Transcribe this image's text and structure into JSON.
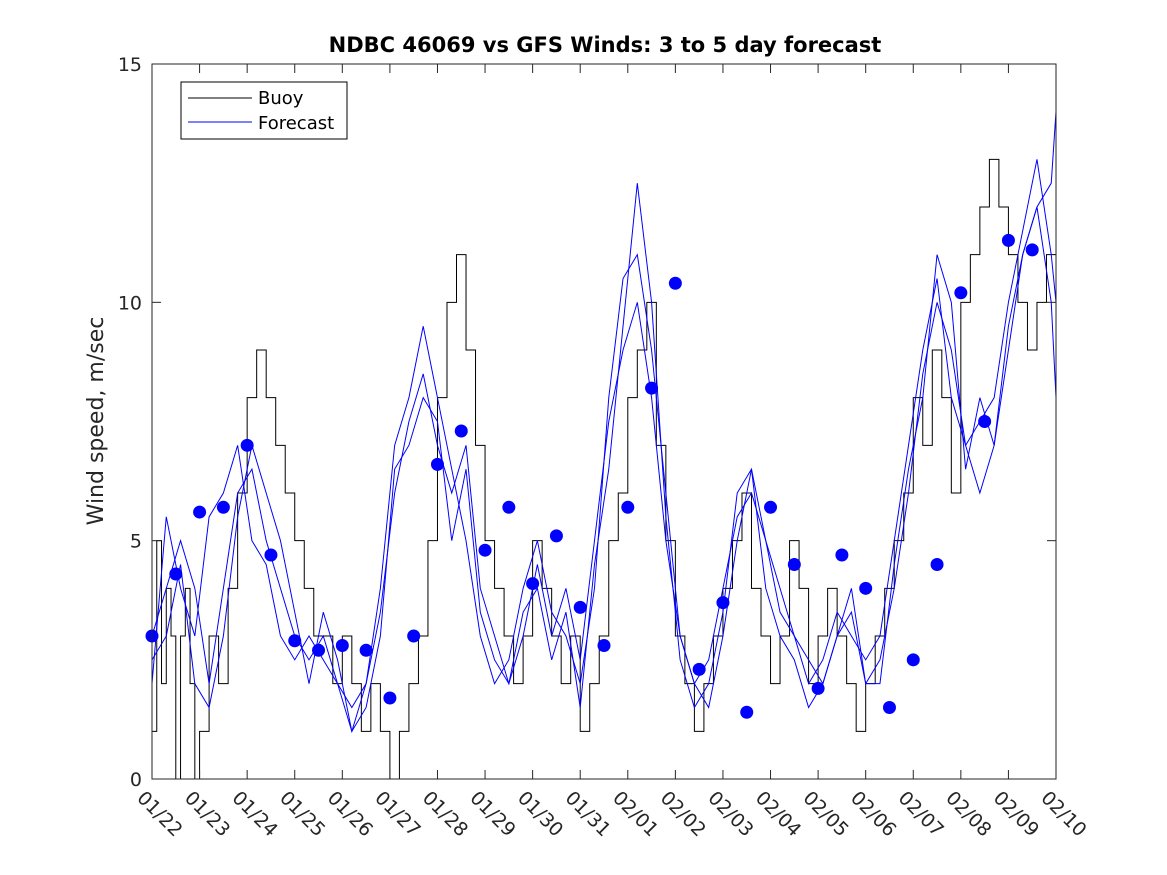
{
  "chart_data": {
    "type": "line",
    "title": "NDBC 46069 vs GFS Winds: 3 to 5 day forecast",
    "xlabel": "",
    "ylabel": "Wind speed, m/sec",
    "xlim": [
      0,
      19
    ],
    "ylim": [
      0,
      15
    ],
    "x_tick_labels": [
      "01/22",
      "01/23",
      "01/24",
      "01/25",
      "01/26",
      "01/27",
      "01/28",
      "01/29",
      "01/30",
      "01/31",
      "02/01",
      "02/02",
      "02/03",
      "02/04",
      "02/05",
      "02/06",
      "02/07",
      "02/08",
      "02/09",
      "02/10"
    ],
    "y_ticks": [
      0,
      5,
      10,
      15
    ],
    "legend": {
      "position": "top-left",
      "entries": [
        {
          "name": "Buoy",
          "color": "#000000"
        },
        {
          "name": "Forecast",
          "color": "#0000ff"
        }
      ]
    },
    "colors": {
      "buoy": "#000000",
      "forecast": "#0000ff",
      "markers": "#0000ff"
    },
    "buoy": {
      "name": "Buoy",
      "x": [
        0,
        0.1,
        0.2,
        0.3,
        0.4,
        0.5,
        0.6,
        0.7,
        0.8,
        0.9,
        1.0,
        1.2,
        1.4,
        1.6,
        1.8,
        2.0,
        2.2,
        2.4,
        2.6,
        2.8,
        3.0,
        3.2,
        3.4,
        3.6,
        3.8,
        4.0,
        4.2,
        4.4,
        4.6,
        4.8,
        5.0,
        5.2,
        5.4,
        5.6,
        5.8,
        6.0,
        6.2,
        6.4,
        6.6,
        6.8,
        7.0,
        7.2,
        7.4,
        7.6,
        7.8,
        8.0,
        8.2,
        8.4,
        8.6,
        8.8,
        9.0,
        9.2,
        9.4,
        9.6,
        9.8,
        10.0,
        10.2,
        10.4,
        10.6,
        10.8,
        11.0,
        11.2,
        11.4,
        11.6,
        11.8,
        12.0,
        12.2,
        12.4,
        12.6,
        12.8,
        13.0,
        13.2,
        13.4,
        13.6,
        13.8,
        14.0,
        14.2,
        14.4,
        14.6,
        14.8,
        15.0,
        15.2,
        15.4,
        15.6,
        15.8,
        16.0,
        16.2,
        16.4,
        16.6,
        16.8,
        17.0,
        17.2,
        17.4,
        17.6,
        17.8,
        18.0,
        18.2,
        18.4,
        18.6,
        18.8,
        19.0
      ],
      "y": [
        1,
        5,
        2,
        4,
        3,
        0,
        3,
        4,
        2,
        0,
        1,
        3,
        2,
        4,
        6,
        8,
        9,
        8,
        7,
        6,
        5,
        4,
        3,
        3,
        2,
        3,
        2,
        1,
        2,
        1,
        0,
        1,
        2,
        3,
        5,
        8,
        10,
        11,
        9,
        7,
        5,
        4,
        3,
        2,
        3,
        5,
        4,
        3,
        2,
        3,
        1,
        2,
        3,
        5,
        6,
        8,
        9,
        10,
        7,
        5,
        3,
        2,
        1,
        2,
        3,
        4,
        5,
        6,
        4,
        3,
        2,
        3,
        5,
        4,
        2,
        3,
        4,
        3,
        2,
        1,
        2,
        3,
        4,
        5,
        6,
        8,
        7,
        9,
        8,
        6,
        10,
        11,
        12,
        13,
        12,
        11,
        10,
        9,
        10,
        11,
        12
      ]
    },
    "forecast_series": [
      {
        "name": "Forecast",
        "x": [
          0,
          0.3,
          0.6,
          0.9,
          1.2,
          1.5,
          1.8,
          2.1,
          2.4,
          2.7,
          3.0,
          3.3,
          3.6,
          3.9,
          4.2,
          4.5,
          4.8,
          5.1,
          5.4,
          5.7,
          6.0,
          6.3,
          6.6,
          6.9,
          7.2,
          7.5,
          7.8,
          8.1,
          8.4,
          8.7,
          9.0,
          9.3,
          9.6,
          9.9,
          10.2,
          10.5,
          10.8,
          11.1,
          11.4,
          11.7,
          12.0,
          12.3,
          12.6,
          12.9,
          13.2,
          13.5,
          13.8,
          14.1,
          14.4,
          14.7,
          15.0,
          15.3,
          15.6,
          15.9,
          16.2,
          16.5,
          16.8,
          17.1,
          17.4,
          17.7,
          18.0,
          18.3,
          18.6,
          18.9,
          19.0
        ],
        "y": [
          2,
          5.5,
          4,
          3,
          5.5,
          6,
          7,
          5,
          4.5,
          3,
          2.5,
          3,
          2.5,
          2,
          1,
          2,
          3.5,
          6,
          7.5,
          8.5,
          7,
          6,
          7,
          4,
          3,
          2,
          3,
          4.5,
          3,
          4,
          2.5,
          5,
          7.5,
          9,
          10,
          8,
          5,
          3,
          2,
          1.5,
          3,
          5,
          6.5,
          5,
          4,
          3,
          2.5,
          2,
          3,
          4,
          2,
          2.5,
          4,
          6,
          8.5,
          10,
          9,
          7,
          6,
          7,
          9,
          11,
          12,
          12.5,
          14
        ]
      },
      {
        "name": "Forecast",
        "x": [
          0,
          0.3,
          0.6,
          0.9,
          1.2,
          1.5,
          1.8,
          2.1,
          2.4,
          2.7,
          3.0,
          3.3,
          3.6,
          3.9,
          4.2,
          4.5,
          4.8,
          5.1,
          5.4,
          5.7,
          6.0,
          6.3,
          6.6,
          6.9,
          7.2,
          7.5,
          7.8,
          8.1,
          8.4,
          8.7,
          9.0,
          9.3,
          9.6,
          9.9,
          10.2,
          10.5,
          10.8,
          11.1,
          11.4,
          11.7,
          12.0,
          12.3,
          12.6,
          12.9,
          13.2,
          13.5,
          13.8,
          14.1,
          14.4,
          14.7,
          15.0,
          15.3,
          15.6,
          15.9,
          16.2,
          16.5,
          16.8,
          17.1,
          17.4,
          17.7,
          18.0,
          18.3,
          18.6,
          18.9,
          19.0
        ],
        "y": [
          3,
          4,
          5,
          4,
          2,
          4,
          6,
          6.5,
          5,
          4,
          3,
          2.5,
          3,
          2,
          1.5,
          2,
          4,
          7,
          8,
          9.5,
          8,
          6.5,
          5,
          3,
          2,
          2.5,
          4,
          5,
          3.5,
          3,
          2,
          4,
          8,
          10.5,
          11,
          9,
          6,
          3,
          2,
          2.5,
          4,
          5.5,
          6,
          5,
          3.5,
          3,
          2,
          2.5,
          3.5,
          3,
          2.5,
          3,
          5,
          7,
          9,
          10.5,
          8,
          7,
          7.5,
          8,
          10,
          11.5,
          13,
          11,
          10
        ]
      },
      {
        "name": "Forecast",
        "x": [
          0,
          0.3,
          0.6,
          0.9,
          1.2,
          1.5,
          1.8,
          2.1,
          2.4,
          2.7,
          3.0,
          3.3,
          3.6,
          3.9,
          4.2,
          4.5,
          4.8,
          5.1,
          5.4,
          5.7,
          6.0,
          6.3,
          6.6,
          6.9,
          7.2,
          7.5,
          7.8,
          8.1,
          8.4,
          8.7,
          9.0,
          9.3,
          9.6,
          9.9,
          10.2,
          10.5,
          10.8,
          11.1,
          11.4,
          11.7,
          12.0,
          12.3,
          12.6,
          12.9,
          13.2,
          13.5,
          13.8,
          14.1,
          14.4,
          14.7,
          15.0,
          15.3,
          15.6,
          15.9,
          16.2,
          16.5,
          16.8,
          17.1,
          17.4,
          17.7,
          18.0,
          18.3,
          18.6,
          18.9,
          19.0
        ],
        "y": [
          2.5,
          3,
          4.5,
          2,
          1.5,
          3,
          5.5,
          7,
          6,
          5,
          3.5,
          2,
          3.5,
          2.5,
          1,
          1.5,
          3,
          6.5,
          7,
          8,
          7.5,
          5,
          6.5,
          3.5,
          2.5,
          2,
          3.5,
          4,
          2.5,
          3.5,
          1.5,
          4.5,
          6.5,
          9.5,
          12.5,
          10,
          5.5,
          2.5,
          1.5,
          2,
          3.5,
          6,
          6.5,
          4,
          3,
          2.5,
          1.5,
          2,
          3,
          3.5,
          2,
          2,
          4.5,
          6.5,
          8,
          11,
          10,
          6.5,
          8,
          7,
          9.5,
          11,
          12,
          10,
          8
        ]
      }
    ],
    "daily_mean_markers": {
      "x": [
        0,
        0.5,
        1.0,
        1.5,
        2.0,
        2.5,
        3.0,
        3.5,
        4.0,
        4.5,
        5.0,
        5.5,
        6.0,
        6.5,
        7.0,
        7.5,
        8.0,
        8.5,
        9.0,
        9.5,
        10.0,
        10.5,
        11.0,
        11.5,
        12.0,
        12.5,
        13.0,
        13.5,
        14.0,
        14.5,
        15.0,
        15.5,
        16.0,
        16.5,
        17.0,
        17.5,
        18.0,
        18.5
      ],
      "y": [
        3.0,
        4.3,
        5.6,
        5.7,
        7.0,
        4.7,
        2.9,
        2.7,
        2.8,
        2.7,
        1.7,
        3.0,
        6.6,
        7.3,
        4.8,
        5.7,
        4.1,
        5.1,
        3.6,
        2.8,
        5.7,
        8.2,
        10.4,
        2.3,
        3.7,
        1.4,
        5.7,
        4.5,
        1.9,
        4.7,
        4.0,
        1.5,
        2.5,
        4.5,
        10.2,
        7.5,
        11.3,
        11.1
      ]
    }
  }
}
